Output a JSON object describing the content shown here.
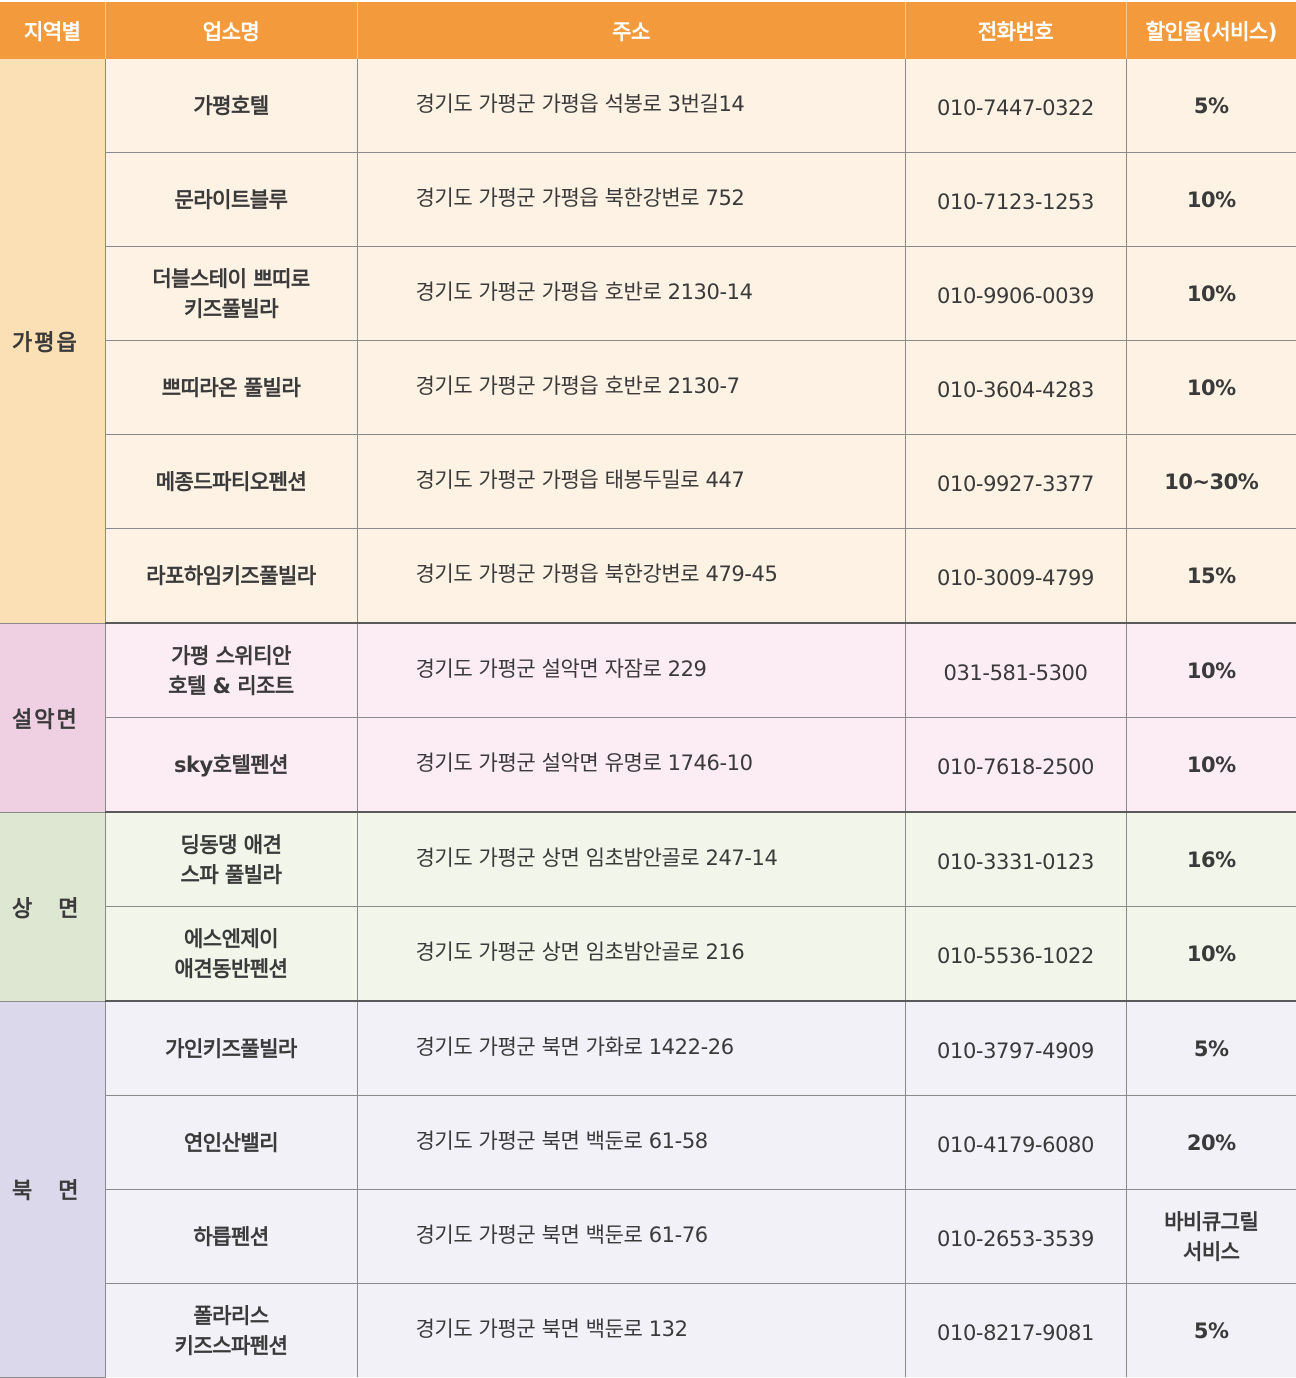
{
  "header": {
    "region": "지역별",
    "name": "업소명",
    "address": "주소",
    "phone": "전화번호",
    "discount": "할인율(서비스)"
  },
  "regions": [
    {
      "label": "가평읍",
      "rows": [
        {
          "name": [
            "가평호텔"
          ],
          "address": "경기도 가평군 가평읍 석봉로 3번길14",
          "phone": "010-7447-0322",
          "discount": [
            "5%"
          ]
        },
        {
          "name": [
            "문라이트블루"
          ],
          "address": "경기도 가평군 가평읍 북한강변로 752",
          "phone": "010-7123-1253",
          "discount": [
            "10%"
          ]
        },
        {
          "name": [
            "더블스테이 쁘띠로",
            "키즈풀빌라"
          ],
          "address": "경기도 가평군 가평읍 호반로 2130-14",
          "phone": "010-9906-0039",
          "discount": [
            "10%"
          ]
        },
        {
          "name": [
            "쁘띠라온 풀빌라"
          ],
          "address": "경기도 가평군 가평읍 호반로 2130-7",
          "phone": "010-3604-4283",
          "discount": [
            "10%"
          ]
        },
        {
          "name": [
            "메종드파티오펜션"
          ],
          "address": "경기도 가평군 가평읍 태봉두밀로 447",
          "phone": "010-9927-3377",
          "discount": [
            "10~30%"
          ]
        },
        {
          "name": [
            "라포하임키즈풀빌라"
          ],
          "address": "경기도 가평군 가평읍 북한강변로 479-45",
          "phone": "010-3009-4799",
          "discount": [
            "15%"
          ]
        }
      ]
    },
    {
      "label": "설악면",
      "rows": [
        {
          "name": [
            "가평 스위티안",
            "호텔 & 리조트"
          ],
          "address": "경기도 가평군 설악면 자잠로 229",
          "phone": "031-581-5300",
          "discount": [
            "10%"
          ]
        },
        {
          "name": [
            "sky호텔펜션"
          ],
          "address": "경기도 가평군 설악면 유명로 1746-10",
          "phone": "010-7618-2500",
          "discount": [
            "10%"
          ]
        }
      ]
    },
    {
      "label": "상　면",
      "rows": [
        {
          "name": [
            "딩동댕 애견",
            "스파 풀빌라"
          ],
          "address": "경기도 가평군 상면 임초밤안골로 247-14",
          "phone": "010-3331-0123",
          "discount": [
            "16%"
          ]
        },
        {
          "name": [
            "에스엔제이",
            "애견동반펜션"
          ],
          "address": "경기도 가평군 상면 임초밤안골로 216",
          "phone": "010-5536-1022",
          "discount": [
            "10%"
          ]
        }
      ]
    },
    {
      "label": "북　면",
      "rows": [
        {
          "name": [
            "가인키즈풀빌라"
          ],
          "address": "경기도 가평군 북면 가화로 1422-26",
          "phone": "010-3797-4909",
          "discount": [
            "5%"
          ]
        },
        {
          "name": [
            "연인산밸리"
          ],
          "address": "경기도 가평군 북면 백둔로 61-58",
          "phone": "010-4179-6080",
          "discount": [
            "20%"
          ]
        },
        {
          "name": [
            "하릅펜션"
          ],
          "address": "경기도 가평군 북면 백둔로 61-76",
          "phone": "010-2653-3539",
          "discount": [
            "바비큐그릴",
            "서비스"
          ]
        },
        {
          "name": [
            "폴라리스",
            "키즈스파펜션"
          ],
          "address": "경기도 가평군 북면 백둔로 132",
          "phone": "010-8217-9081",
          "discount": [
            "5%"
          ]
        }
      ]
    }
  ]
}
